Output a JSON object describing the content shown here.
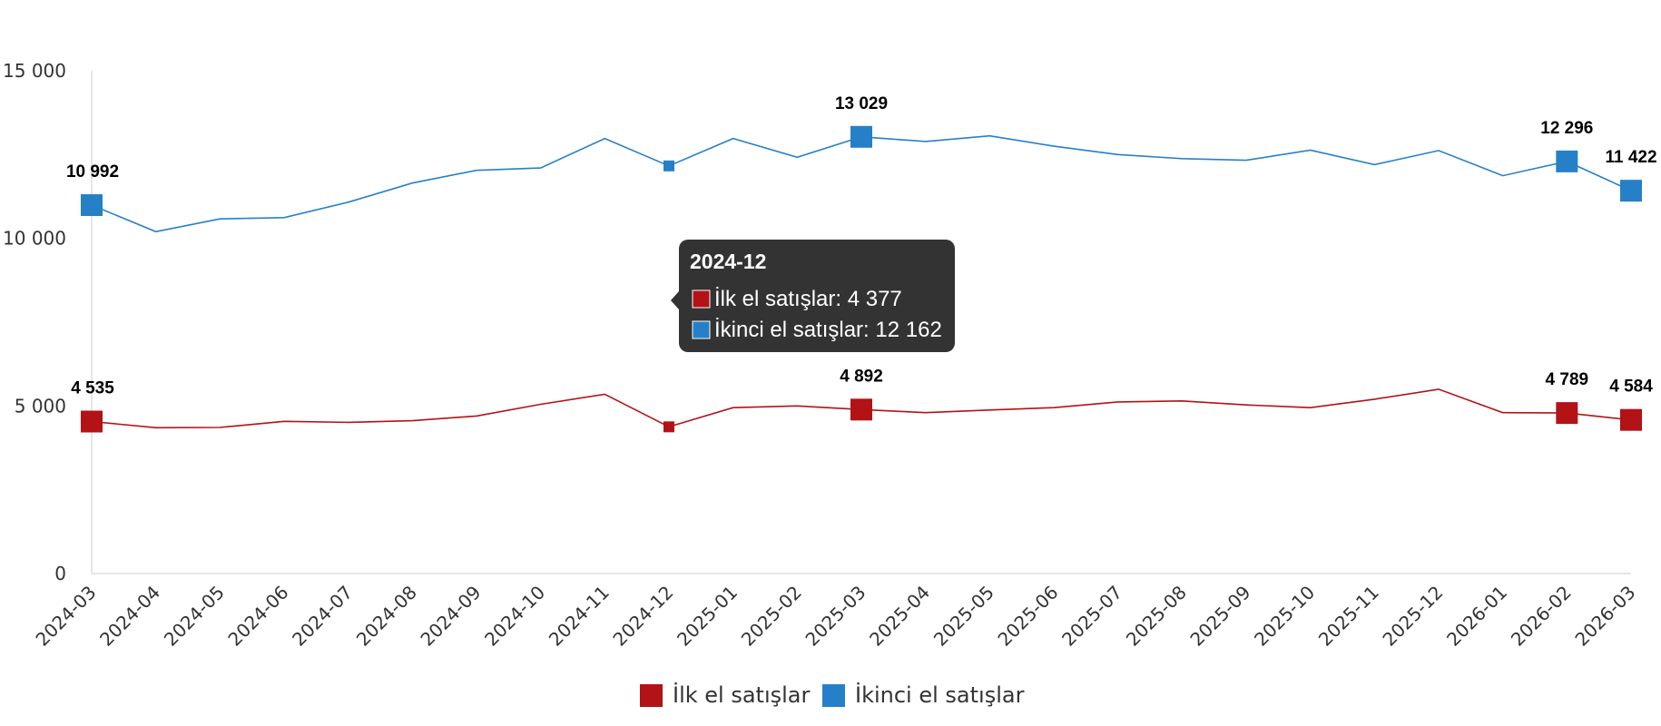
{
  "chart_data": {
    "type": "line",
    "categories": [
      "2024-03",
      "2024-04",
      "2024-05",
      "2024-06",
      "2024-07",
      "2024-08",
      "2024-09",
      "2024-10",
      "2024-11",
      "2024-12",
      "2025-01",
      "2025-02",
      "2025-03",
      "2025-04",
      "2025-05",
      "2025-06",
      "2025-07",
      "2025-08",
      "2025-09",
      "2025-10",
      "2025-11",
      "2025-12",
      "2026-01",
      "2026-02",
      "2026-03"
    ],
    "series": [
      {
        "name": "İlk el satışlar",
        "color": "#b31217",
        "values": [
          4535,
          4350,
          4360,
          4540,
          4510,
          4560,
          4700,
          5050,
          5350,
          4377,
          4950,
          5000,
          4892,
          4800,
          4880,
          4950,
          5120,
          5150,
          5030,
          4950,
          5200,
          5500,
          4800,
          4789,
          4584
        ]
      },
      {
        "name": "İkinci el satışlar",
        "color": "#2680c8",
        "values": [
          10992,
          10200,
          10580,
          10620,
          11080,
          11650,
          12030,
          12100,
          12980,
          12162,
          12980,
          12420,
          13029,
          12890,
          13060,
          12750,
          12500,
          12380,
          12330,
          12630,
          12200,
          12620,
          11870,
          12296,
          11422
        ]
      }
    ],
    "highlighted_indices": [
      0,
      12,
      23,
      24
    ],
    "data_labels": [
      {
        "series": 0,
        "index": 0,
        "text": "4 535"
      },
      {
        "series": 0,
        "index": 12,
        "text": "4 892"
      },
      {
        "series": 0,
        "index": 23,
        "text": "4 789"
      },
      {
        "series": 0,
        "index": 24,
        "text": "4 584"
      },
      {
        "series": 1,
        "index": 0,
        "text": "10 992"
      },
      {
        "series": 1,
        "index": 12,
        "text": "13 029"
      },
      {
        "series": 1,
        "index": 23,
        "text": "12 296"
      },
      {
        "series": 1,
        "index": 24,
        "text": "11 422"
      }
    ],
    "ylim": [
      0,
      15000
    ],
    "y_ticks": [
      0,
      5000,
      10000,
      15000
    ],
    "y_tick_labels": [
      "0",
      "5 000",
      "10 000",
      "15 000"
    ],
    "grid": false,
    "legend_position": "bottom-center",
    "legend": [
      "İlk el satışlar",
      "İkinci el satışlar"
    ],
    "tooltip": {
      "index": 9,
      "title": "2024-12",
      "lines": [
        "İlk el satışlar: 4 377",
        "İkinci el satışlar: 12 162"
      ]
    }
  }
}
